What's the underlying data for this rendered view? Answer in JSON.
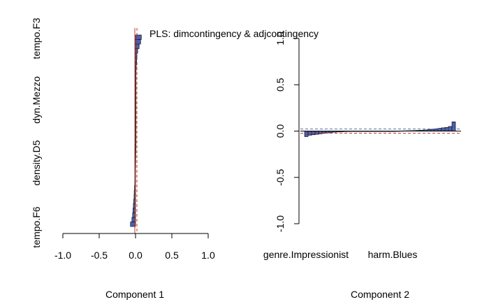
{
  "chart_data": [
    {
      "type": "bar",
      "orientation": "horizontal",
      "title": "PLS: dimcontingency & adjcontingency",
      "xlabel": "Component 1",
      "ylabel": "",
      "xlim": [
        -1.0,
        1.0
      ],
      "x_ticks": [
        "-1.0",
        "-0.5",
        "0.0",
        "0.5",
        "1.0"
      ],
      "category_labels": [
        "tempo.F6",
        "density.D5",
        "dyn.Mezzo",
        "tempo.F3"
      ],
      "grid": false,
      "bar_color": "#4a5fb0",
      "reference_line_color": "#c0392b",
      "values": [
        -0.07,
        -0.05,
        -0.04,
        -0.035,
        -0.03,
        -0.025,
        -0.02,
        -0.018,
        -0.015,
        -0.012,
        -0.01,
        -0.008,
        -0.006,
        -0.005,
        -0.004,
        -0.003,
        -0.002,
        -0.001,
        0.0,
        0.0,
        0.0,
        0.0,
        0.0,
        0.0,
        0.0,
        0.001,
        0.001,
        0.002,
        0.002,
        0.003,
        0.003,
        0.004,
        0.005,
        0.006,
        0.008,
        0.01,
        0.015,
        0.02,
        0.03,
        0.05,
        0.07,
        0.08
      ]
    },
    {
      "type": "bar",
      "orientation": "vertical",
      "xlabel": "Component 2",
      "ylabel": "",
      "ylim": [
        -1.0,
        1.0
      ],
      "y_ticks": [
        "-1.0",
        "-0.5",
        "0.0",
        "0.5",
        "1.0"
      ],
      "category_labels": [
        "genre.Impressionist",
        "harm.Blues"
      ],
      "grid": false,
      "bar_color": "#4a5fb0",
      "reference_line_color": "#c0392b",
      "dashed_line_color": "#5b6f9e",
      "values": [
        -0.06,
        -0.045,
        -0.04,
        -0.035,
        -0.03,
        -0.025,
        -0.02,
        -0.015,
        -0.012,
        -0.01,
        -0.008,
        -0.006,
        -0.005,
        -0.004,
        -0.003,
        -0.002,
        -0.001,
        0.0,
        0.0,
        0.0,
        0.0,
        0.0,
        0.0,
        0.0,
        0.0,
        0.0,
        0.001,
        0.002,
        0.003,
        0.004,
        0.005,
        0.006,
        0.008,
        0.01,
        0.012,
        0.015,
        0.02,
        0.025,
        0.03,
        0.035,
        0.04,
        0.05,
        0.1
      ]
    }
  ]
}
